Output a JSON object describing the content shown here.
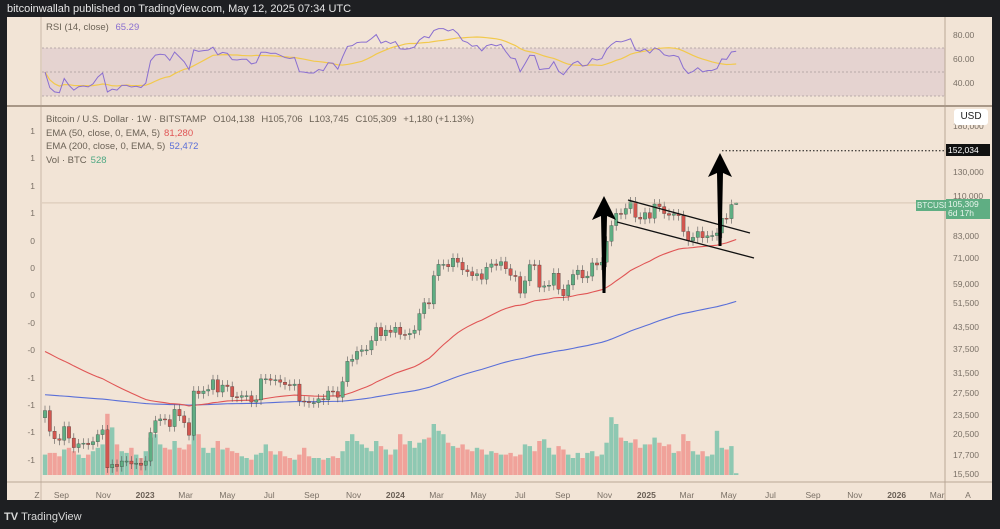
{
  "header": {
    "title": "bitcoinwallah published on TradingView.com, May 12, 2025 07:34 UTC"
  },
  "rsi_legend": {
    "label": "RSI (14, close)",
    "value": "65.29",
    "value_color": "#8a6fd0",
    "ma_color": "#f2c94c"
  },
  "main_legend": {
    "symbol": "Bitcoin / U.S. Dollar · 1W · BITSTAMP",
    "open": "O104,138",
    "high": "H105,706",
    "low": "L103,745",
    "close": "C105,309",
    "change": "+1,180 (+1.13%)",
    "ema50_label": "EMA (50, close, 0, EMA, 5)",
    "ema50_value": "81,280",
    "ema50_color": "#e05555",
    "ema200_label": "EMA (200, close, 0, EMA, 5)",
    "ema200_value": "52,472",
    "ema200_color": "#5a6fd8",
    "vol_label": "Vol · BTC",
    "vol_value": "528"
  },
  "left_axis": {
    "labels": [
      "1",
      "1",
      "1",
      "1",
      "0",
      "0",
      "0",
      "-0",
      "-0",
      "-1",
      "-1",
      "-1",
      "-1"
    ],
    "button": "Z"
  },
  "rsi_axis": {
    "labels": [
      "80.00",
      "60.00",
      "40.00"
    ]
  },
  "price_axis": {
    "currency_button": "USD",
    "labels": [
      "180,000",
      "130,000",
      "110,000",
      "83,000",
      "71,000",
      "59,000",
      "51,500",
      "43,500",
      "37,500",
      "31,500",
      "27,500",
      "23,500",
      "20,500",
      "17,700",
      "15,500"
    ],
    "target_label": "152,034",
    "button": "A"
  },
  "current_price": {
    "symbol": "BTCUSD",
    "price": "105,309",
    "countdown": "6d 17h",
    "color": "#5fae83"
  },
  "time_axis": [
    {
      "label": "Sep",
      "date": "2022-09-01"
    },
    {
      "label": "Nov",
      "date": "2022-11-01"
    },
    {
      "label": "2023",
      "date": "2023-01-01",
      "year": true
    },
    {
      "label": "Mar",
      "date": "2023-03-01"
    },
    {
      "label": "May",
      "date": "2023-05-01"
    },
    {
      "label": "Jul",
      "date": "2023-07-01"
    },
    {
      "label": "Sep",
      "date": "2023-09-01"
    },
    {
      "label": "Nov",
      "date": "2023-11-01"
    },
    {
      "label": "2024",
      "date": "2024-01-01",
      "year": true
    },
    {
      "label": "Mar",
      "date": "2024-03-01"
    },
    {
      "label": "May",
      "date": "2024-05-01"
    },
    {
      "label": "Jul",
      "date": "2024-07-01"
    },
    {
      "label": "Sep",
      "date": "2024-09-01"
    },
    {
      "label": "Nov",
      "date": "2024-11-01"
    },
    {
      "label": "2025",
      "date": "2025-01-01",
      "year": true
    },
    {
      "label": "Mar",
      "date": "2025-03-01"
    },
    {
      "label": "May",
      "date": "2025-05-01"
    },
    {
      "label": "Jul",
      "date": "2025-07-01"
    },
    {
      "label": "Sep",
      "date": "2025-09-01"
    },
    {
      "label": "Nov",
      "date": "2025-11-01"
    },
    {
      "label": "2026",
      "date": "2026-01-01",
      "year": true
    },
    {
      "label": "Mar",
      "date": "2026-03-01"
    }
  ],
  "footer": {
    "brand": "TradingView"
  },
  "chart_data": {
    "type": "candlestick",
    "interval": "1W",
    "y_scale": "log",
    "start_week": "2022-08-08",
    "up_color": "#5fae83",
    "down_color": "#d2564f",
    "first_open": 23200,
    "closes": [
      24400,
      21100,
      20000,
      19800,
      21800,
      20100,
      18800,
      19300,
      19400,
      19200,
      19600,
      20600,
      21300,
      16300,
      16700,
      16450,
      17100,
      17100,
      16750,
      16850,
      16600,
      17100,
      20900,
      22700,
      23000,
      22900,
      21800,
      24600,
      23500,
      22400,
      20500,
      28000,
      27500,
      28000,
      28300,
      30300,
      27800,
      29200,
      28900,
      26900,
      26800,
      27100,
      27100,
      25900,
      26300,
      30500,
      30500,
      30200,
      30300,
      29800,
      29300,
      29100,
      29400,
      26100,
      26000,
      25800,
      25800,
      26500,
      26300,
      28000,
      27900,
      26800,
      29900,
      34500,
      35000,
      37000,
      37400,
      37400,
      39900,
      43800,
      41300,
      43000,
      42300,
      43900,
      41700,
      41600,
      42000,
      43000,
      48300,
      52100,
      51700,
      63100,
      68300,
      68300,
      67200,
      71300,
      69300,
      65700,
      64900,
      63100,
      63900,
      61500,
      66900,
      68500,
      67800,
      69600,
      66200,
      63200,
      62700,
      55800,
      60800,
      68200,
      68000,
      58200,
      58700,
      59000,
      64200,
      57300,
      54800,
      59100,
      63600,
      65600,
      62100,
      62900,
      69000,
      68000,
      69400,
      80400,
      89800,
      97800,
      97300,
      101200,
      106100,
      95200,
      94000,
      98300,
      94500,
      104500,
      102600,
      97700,
      96500,
      97500,
      96300,
      86100,
      80700,
      82600,
      86100,
      82400,
      83500,
      83700,
      85200,
      94600,
      94300,
      104100,
      105309
    ],
    "last_candle": {
      "open": 104138,
      "high": 105706,
      "low": 103745,
      "close": 105309
    },
    "volumes": [
      6000,
      6500,
      6500,
      5500,
      7500,
      8000,
      7000,
      6000,
      5000,
      6000,
      7000,
      8000,
      9000,
      18000,
      14000,
      9000,
      7000,
      6500,
      8000,
      6000,
      5000,
      7000,
      11000,
      12000,
      9000,
      8000,
      7500,
      10000,
      8000,
      7500,
      9000,
      20000,
      12000,
      8000,
      6500,
      8000,
      10000,
      7500,
      8000,
      7000,
      6500,
      5500,
      5000,
      4500,
      6000,
      6500,
      9000,
      7000,
      6000,
      7000,
      5500,
      5000,
      4500,
      6000,
      8000,
      5500,
      5000,
      5000,
      4500,
      5000,
      5500,
      5000,
      7000,
      10000,
      12000,
      10000,
      9000,
      8000,
      7000,
      10000,
      8500,
      7500,
      6000,
      7500,
      12000,
      9000,
      10000,
      8000,
      9500,
      10500,
      11000,
      15000,
      13000,
      12000,
      9500,
      8500,
      8000,
      9000,
      7500,
      7000,
      8000,
      7500,
      6000,
      7000,
      6500,
      6000,
      6000,
      6500,
      5500,
      6000,
      9000,
      8500,
      7000,
      10000,
      10500,
      8000,
      6000,
      8500,
      7500,
      6000,
      5000,
      6500,
      5000,
      6500,
      7000,
      5500,
      6000,
      9500,
      17000,
      15000,
      11000,
      10000,
      9500,
      10500,
      8000,
      9000,
      9000,
      11000,
      9500,
      8500,
      9000,
      6500,
      7000,
      12000,
      10000,
      7000,
      6000,
      7000,
      5500,
      6000,
      13000,
      8000,
      7500,
      8500,
      528
    ],
    "annotations": {
      "target_price": 152034,
      "channel": "descending channel drawn over Dec 2024 – Apr 2025",
      "arrows": [
        "up arrow at Nov 2024 breakout",
        "up arrow at Apr 2025 breakout"
      ]
    },
    "rsi": {
      "period": 14,
      "levels": [
        70,
        50,
        30
      ],
      "ylim": [
        20,
        100
      ]
    }
  }
}
